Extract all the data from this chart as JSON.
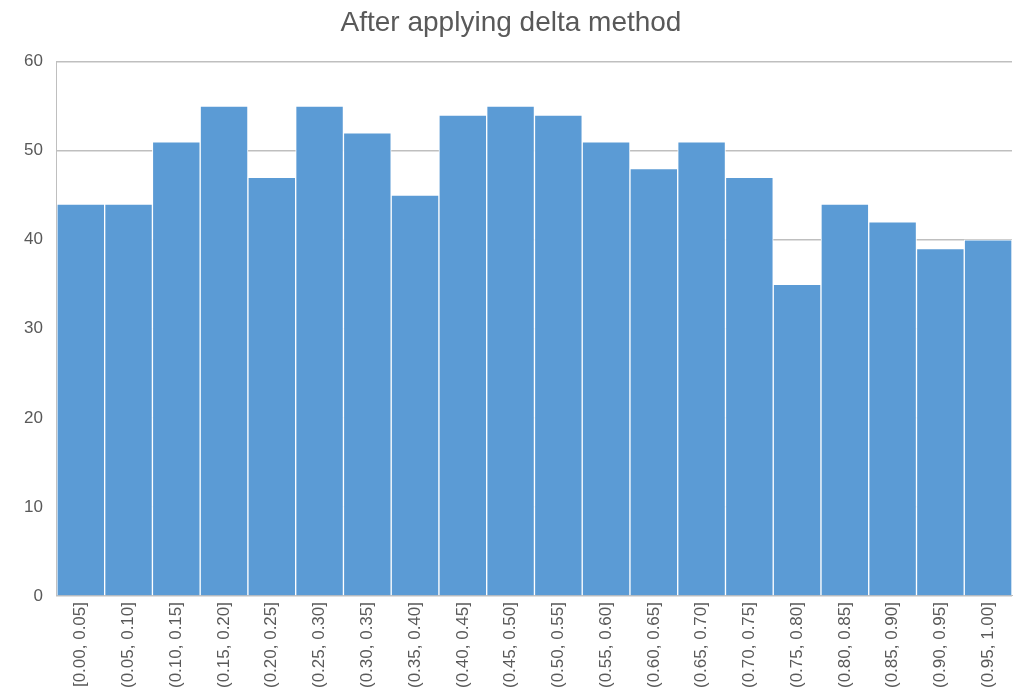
{
  "chart_data": {
    "type": "bar",
    "title": "After applying delta method",
    "categories": [
      "[0.00, 0.05]",
      "(0.05, 0.10]",
      "(0.10, 0.15]",
      "(0.15, 0.20]",
      "(0.20, 0.25]",
      "(0.25, 0.30]",
      "(0.30, 0.35]",
      "(0.35, 0.40]",
      "(0.40, 0.45]",
      "(0.45, 0.50]",
      "(0.50, 0.55]",
      "(0.55, 0.60]",
      "(0.60, 0.65]",
      "(0.65, 0.70]",
      "(0.70, 0.75]",
      "(0.75, 0.80]",
      "(0.80, 0.85]",
      "(0.85, 0.90]",
      "(0.90, 0.95]",
      "(0.95, 1.00]"
    ],
    "values": [
      44,
      44,
      51,
      55,
      47,
      55,
      52,
      45,
      54,
      55,
      54,
      51,
      48,
      51,
      47,
      35,
      44,
      42,
      39,
      40
    ],
    "color": "#5b9bd5",
    "ylim": [
      0,
      60
    ],
    "yticks": [
      0,
      10,
      20,
      30,
      40,
      50,
      60
    ],
    "grid": "y"
  }
}
